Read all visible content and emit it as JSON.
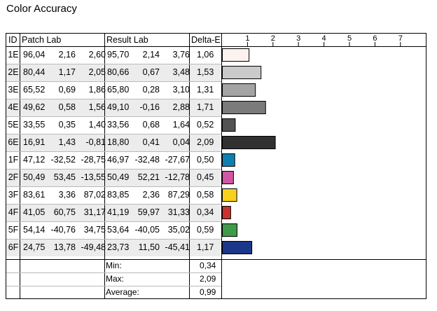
{
  "title": "Color Accuracy",
  "headers": {
    "id": "ID",
    "patch": "Patch Lab",
    "result": "Result Lab",
    "delta": "Delta-E"
  },
  "rows": [
    {
      "id": "1E",
      "patch": [
        "96,04",
        "2,16",
        "2,60"
      ],
      "result": [
        "95,70",
        "2,14",
        "3,76"
      ],
      "delta": "1,06"
    },
    {
      "id": "2E",
      "patch": [
        "80,44",
        "1,17",
        "2,05"
      ],
      "result": [
        "80,66",
        "0,67",
        "3,48"
      ],
      "delta": "1,53"
    },
    {
      "id": "3E",
      "patch": [
        "65,52",
        "0,69",
        "1,86"
      ],
      "result": [
        "65,80",
        "0,28",
        "3,10"
      ],
      "delta": "1,31"
    },
    {
      "id": "4E",
      "patch": [
        "49,62",
        "0,58",
        "1,56"
      ],
      "result": [
        "49,10",
        "-0,16",
        "2,88"
      ],
      "delta": "1,71"
    },
    {
      "id": "5E",
      "patch": [
        "33,55",
        "0,35",
        "1,40"
      ],
      "result": [
        "33,56",
        "0,68",
        "1,64"
      ],
      "delta": "0,52"
    },
    {
      "id": "6E",
      "patch": [
        "16,91",
        "1,43",
        "-0,81"
      ],
      "result": [
        "18,80",
        "0,41",
        "0,04"
      ],
      "delta": "2,09"
    },
    {
      "id": "1F",
      "patch": [
        "47,12",
        "-32,52",
        "-28,75"
      ],
      "result": [
        "46,97",
        "-32,48",
        "-27,67"
      ],
      "delta": "0,50"
    },
    {
      "id": "2F",
      "patch": [
        "50,49",
        "53,45",
        "-13,55"
      ],
      "result": [
        "50,49",
        "52,21",
        "-12,78"
      ],
      "delta": "0,45"
    },
    {
      "id": "3F",
      "patch": [
        "83,61",
        "3,36",
        "87,02"
      ],
      "result": [
        "83,85",
        "2,36",
        "87,29"
      ],
      "delta": "0,58"
    },
    {
      "id": "4F",
      "patch": [
        "41,05",
        "60,75",
        "31,17"
      ],
      "result": [
        "41,19",
        "59,97",
        "31,33"
      ],
      "delta": "0,34"
    },
    {
      "id": "5F",
      "patch": [
        "54,14",
        "-40,76",
        "34,75"
      ],
      "result": [
        "53,64",
        "-40,05",
        "35,02"
      ],
      "delta": "0,59"
    },
    {
      "id": "6F",
      "patch": [
        "24,75",
        "13,78",
        "-49,48"
      ],
      "result": [
        "23,73",
        "11,50",
        "-45,41"
      ],
      "delta": "1,17"
    }
  ],
  "summary": [
    {
      "label": "Min:",
      "value": "0,34"
    },
    {
      "label": "Max:",
      "value": "2,09"
    },
    {
      "label": "Average:",
      "value": "0,99"
    }
  ],
  "chart_data": {
    "type": "bar",
    "orientation": "horizontal",
    "categories": [
      "1E",
      "2E",
      "3E",
      "4E",
      "5E",
      "6E",
      "1F",
      "2F",
      "3F",
      "4F",
      "5F",
      "6F"
    ],
    "values": [
      1.06,
      1.53,
      1.31,
      1.71,
      0.52,
      2.09,
      0.5,
      0.45,
      0.58,
      0.34,
      0.59,
      1.17
    ],
    "xlim": [
      0,
      7.5
    ],
    "xticks": [
      "1",
      "2",
      "3",
      "4",
      "5",
      "6",
      "7"
    ],
    "xtick_values": [
      1,
      2,
      3,
      4,
      5,
      6,
      7
    ],
    "colors": [
      "#fcf2ef",
      "#cacaca",
      "#a4a4a4",
      "#7b7b7b",
      "#535353",
      "#313131",
      "#0f7fae",
      "#d157a3",
      "#f7d11d",
      "#c8322f",
      "#3f9b4a",
      "#1c3789"
    ],
    "grid": false,
    "legend": "none"
  }
}
